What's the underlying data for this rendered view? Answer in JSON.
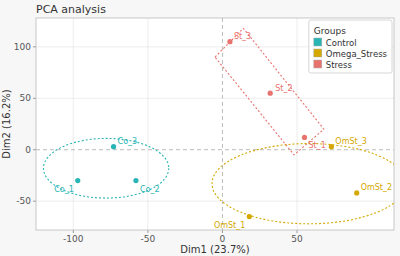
{
  "chart_data": {
    "type": "scatter",
    "title": "PCA analysis",
    "xlabel": "Dim1 (23.7%)",
    "ylabel": "Dim2 (16.2%)",
    "xlim": [
      -125,
      115
    ],
    "ylim": [
      -78,
      128
    ],
    "xticks": [
      -100,
      -50,
      0,
      50
    ],
    "yticks": [
      -50,
      0,
      50,
      100
    ],
    "grid": true,
    "legend": "upper right",
    "legend_title": "Groups",
    "series": [
      {
        "name": "Control",
        "color": "#29b5b5",
        "labels": [
          "Co_1",
          "Co_2",
          "Co_3"
        ],
        "x": [
          -97,
          -58,
          -73
        ],
        "values": [
          -30,
          -30,
          3
        ],
        "ellipse": {
          "cx": -78,
          "cy": -18,
          "width": 84,
          "height": 58,
          "angle": 0
        }
      },
      {
        "name": "Omega_Stress",
        "color": "#d4a800",
        "labels": [
          "OmSt_1",
          "OmSt_2",
          "OmSt_3"
        ],
        "x": [
          18,
          90,
          73
        ],
        "values": [
          -65,
          -42,
          3
        ],
        "ellipse": {
          "cx": 58,
          "cy": -33,
          "width": 130,
          "height": 78,
          "angle": 0
        }
      },
      {
        "name": "Stress",
        "color": "#e8736e",
        "labels": [
          "St_1",
          "St_2",
          "St_3"
        ],
        "x": [
          55,
          32,
          5
        ],
        "values": [
          12,
          55,
          105
        ],
        "polygon": [
          [
            -5,
            90
          ],
          [
            14,
            118
          ],
          [
            68,
            20
          ],
          [
            48,
            -5
          ]
        ]
      }
    ]
  }
}
